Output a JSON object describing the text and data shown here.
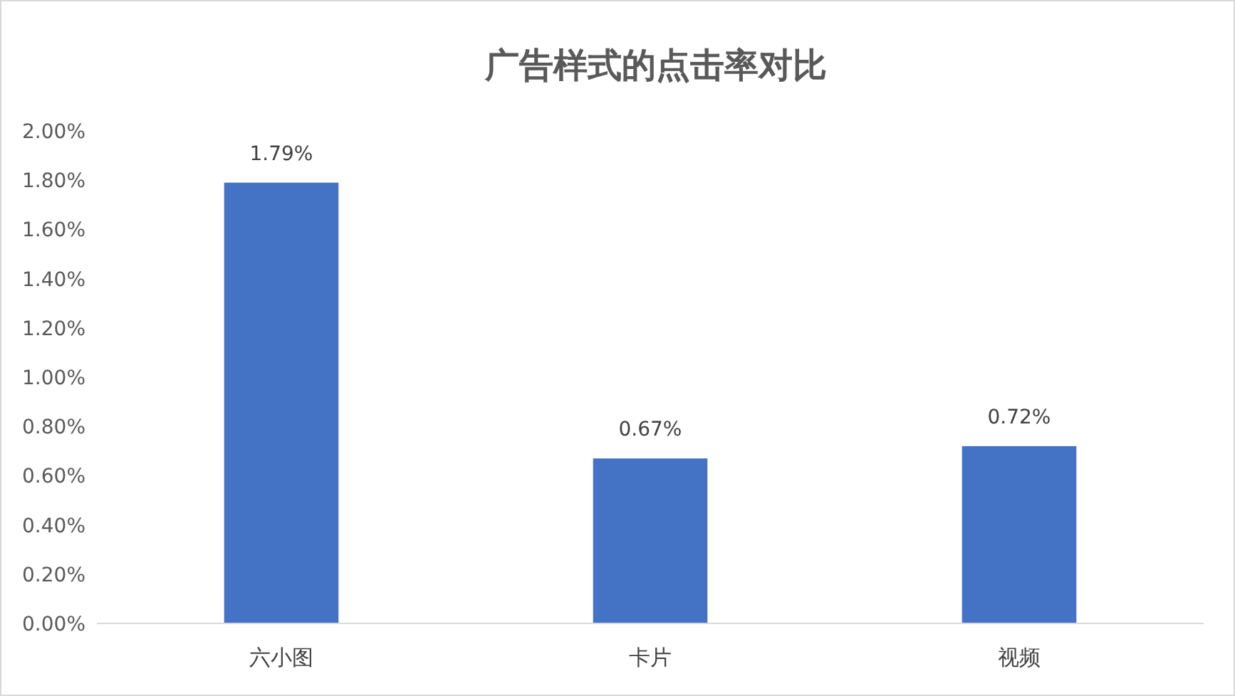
{
  "chart_data": {
    "type": "bar",
    "title": "广告样式的点击率对比",
    "categories": [
      "六小图",
      "卡片",
      "视频"
    ],
    "values": [
      1.79,
      0.67,
      0.72
    ],
    "color": "#4472c4",
    "value_labels": [
      "1.79%",
      "0.67%",
      "0.72%"
    ],
    "ylim": [
      0,
      2
    ],
    "yticks": [
      {
        "value": 0,
        "label": "0.00%"
      },
      {
        "value": 0.2,
        "label": "0.20%"
      },
      {
        "value": 0.4,
        "label": "0.40%"
      },
      {
        "value": 0.6,
        "label": "0.60%"
      },
      {
        "value": 0.8,
        "label": "0.80%"
      },
      {
        "value": 1,
        "label": "1.00%"
      },
      {
        "value": 1.2,
        "label": "1.20%"
      },
      {
        "value": 1.4,
        "label": "1.40%"
      },
      {
        "value": 1.6,
        "label": "1.60%"
      },
      {
        "value": 1.8,
        "label": "1.80%"
      },
      {
        "value": 2,
        "label": "2.00%"
      }
    ],
    "grid": false
  }
}
